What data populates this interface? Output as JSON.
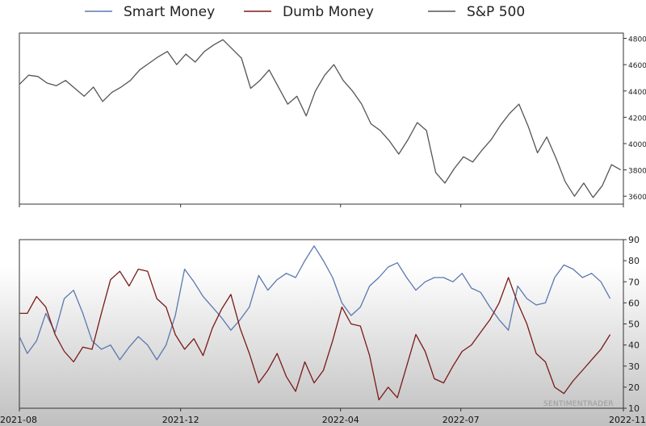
{
  "chart_data": [
    {
      "type": "line",
      "title": "",
      "series": [
        {
          "name": "S&P 500",
          "color": "#555555",
          "points": [
            [
              "2021-08-01",
              4450
            ],
            [
              "2021-08-08",
              4520
            ],
            [
              "2021-08-15",
              4510
            ],
            [
              "2021-08-22",
              4460
            ],
            [
              "2021-08-29",
              4440
            ],
            [
              "2021-09-05",
              4480
            ],
            [
              "2021-09-12",
              4420
            ],
            [
              "2021-09-19",
              4360
            ],
            [
              "2021-09-26",
              4430
            ],
            [
              "2021-10-03",
              4320
            ],
            [
              "2021-10-10",
              4390
            ],
            [
              "2021-10-17",
              4430
            ],
            [
              "2021-10-24",
              4480
            ],
            [
              "2021-10-31",
              4560
            ],
            [
              "2021-11-07",
              4610
            ],
            [
              "2021-11-14",
              4660
            ],
            [
              "2021-11-21",
              4700
            ],
            [
              "2021-11-28",
              4600
            ],
            [
              "2021-12-05",
              4680
            ],
            [
              "2021-12-12",
              4620
            ],
            [
              "2021-12-19",
              4700
            ],
            [
              "2021-12-26",
              4750
            ],
            [
              "2022-01-02",
              4790
            ],
            [
              "2022-01-09",
              4720
            ],
            [
              "2022-01-16",
              4650
            ],
            [
              "2022-01-23",
              4420
            ],
            [
              "2022-01-30",
              4480
            ],
            [
              "2022-02-06",
              4560
            ],
            [
              "2022-02-13",
              4430
            ],
            [
              "2022-02-20",
              4300
            ],
            [
              "2022-02-27",
              4360
            ],
            [
              "2022-03-06",
              4210
            ],
            [
              "2022-03-13",
              4400
            ],
            [
              "2022-03-20",
              4520
            ],
            [
              "2022-03-27",
              4600
            ],
            [
              "2022-04-03",
              4480
            ],
            [
              "2022-04-10",
              4400
            ],
            [
              "2022-04-17",
              4300
            ],
            [
              "2022-04-24",
              4150
            ],
            [
              "2022-05-01",
              4100
            ],
            [
              "2022-05-08",
              4020
            ],
            [
              "2022-05-15",
              3920
            ],
            [
              "2022-05-22",
              4030
            ],
            [
              "2022-05-29",
              4160
            ],
            [
              "2022-06-05",
              4100
            ],
            [
              "2022-06-12",
              3780
            ],
            [
              "2022-06-19",
              3700
            ],
            [
              "2022-06-26",
              3810
            ],
            [
              "2022-07-03",
              3900
            ],
            [
              "2022-07-10",
              3860
            ],
            [
              "2022-07-17",
              3950
            ],
            [
              "2022-07-24",
              4030
            ],
            [
              "2022-07-31",
              4140
            ],
            [
              "2022-08-07",
              4230
            ],
            [
              "2022-08-14",
              4300
            ],
            [
              "2022-08-21",
              4130
            ],
            [
              "2022-08-28",
              3930
            ],
            [
              "2022-09-04",
              4050
            ],
            [
              "2022-09-11",
              3890
            ],
            [
              "2022-09-18",
              3710
            ],
            [
              "2022-09-25",
              3600
            ],
            [
              "2022-10-02",
              3700
            ],
            [
              "2022-10-09",
              3590
            ],
            [
              "2022-10-16",
              3680
            ],
            [
              "2022-10-23",
              3840
            ],
            [
              "2022-10-30",
              3800
            ]
          ]
        }
      ],
      "x_range": [
        "2021-08-01",
        "2022-11-01"
      ],
      "ylim": [
        3540,
        4840
      ],
      "yticks": [
        3600,
        3800,
        4000,
        4200,
        4400,
        4600,
        4800
      ],
      "grid": false
    },
    {
      "type": "line",
      "title": "",
      "series": [
        {
          "name": "Smart Money",
          "color": "#5b78b0",
          "points": [
            [
              "2021-08-01",
              44
            ],
            [
              "2021-08-07",
              36
            ],
            [
              "2021-08-14",
              42
            ],
            [
              "2021-08-21",
              55
            ],
            [
              "2021-08-28",
              46
            ],
            [
              "2021-09-04",
              62
            ],
            [
              "2021-09-11",
              66
            ],
            [
              "2021-09-18",
              55
            ],
            [
              "2021-09-25",
              42
            ],
            [
              "2021-10-02",
              38
            ],
            [
              "2021-10-09",
              40
            ],
            [
              "2021-10-16",
              33
            ],
            [
              "2021-10-23",
              39
            ],
            [
              "2021-10-30",
              44
            ],
            [
              "2021-11-06",
              40
            ],
            [
              "2021-11-13",
              33
            ],
            [
              "2021-11-20",
              40
            ],
            [
              "2021-11-27",
              54
            ],
            [
              "2021-12-04",
              76
            ],
            [
              "2021-12-11",
              70
            ],
            [
              "2021-12-18",
              63
            ],
            [
              "2021-12-25",
              58
            ],
            [
              "2022-01-01",
              53
            ],
            [
              "2022-01-08",
              47
            ],
            [
              "2022-01-15",
              52
            ],
            [
              "2022-01-22",
              58
            ],
            [
              "2022-01-29",
              73
            ],
            [
              "2022-02-05",
              66
            ],
            [
              "2022-02-12",
              71
            ],
            [
              "2022-02-19",
              74
            ],
            [
              "2022-02-26",
              72
            ],
            [
              "2022-03-05",
              80
            ],
            [
              "2022-03-12",
              87
            ],
            [
              "2022-03-19",
              80
            ],
            [
              "2022-03-26",
              72
            ],
            [
              "2022-04-02",
              60
            ],
            [
              "2022-04-09",
              54
            ],
            [
              "2022-04-16",
              58
            ],
            [
              "2022-04-23",
              68
            ],
            [
              "2022-04-30",
              72
            ],
            [
              "2022-05-07",
              77
            ],
            [
              "2022-05-14",
              79
            ],
            [
              "2022-05-21",
              72
            ],
            [
              "2022-05-28",
              66
            ],
            [
              "2022-06-04",
              70
            ],
            [
              "2022-06-11",
              72
            ],
            [
              "2022-06-18",
              72
            ],
            [
              "2022-06-25",
              70
            ],
            [
              "2022-07-02",
              74
            ],
            [
              "2022-07-09",
              67
            ],
            [
              "2022-07-16",
              65
            ],
            [
              "2022-07-23",
              58
            ],
            [
              "2022-07-30",
              52
            ],
            [
              "2022-08-06",
              47
            ],
            [
              "2022-08-13",
              68
            ],
            [
              "2022-08-20",
              62
            ],
            [
              "2022-08-27",
              59
            ],
            [
              "2022-09-03",
              60
            ],
            [
              "2022-09-10",
              72
            ],
            [
              "2022-09-17",
              78
            ],
            [
              "2022-09-24",
              76
            ],
            [
              "2022-10-01",
              72
            ],
            [
              "2022-10-08",
              74
            ],
            [
              "2022-10-15",
              70
            ],
            [
              "2022-10-22",
              62
            ]
          ]
        },
        {
          "name": "Dumb Money",
          "color": "#7a1a1a",
          "points": [
            [
              "2021-08-01",
              55
            ],
            [
              "2021-08-07",
              55
            ],
            [
              "2021-08-14",
              63
            ],
            [
              "2021-08-21",
              58
            ],
            [
              "2021-08-28",
              45
            ],
            [
              "2021-09-04",
              37
            ],
            [
              "2021-09-11",
              32
            ],
            [
              "2021-09-18",
              39
            ],
            [
              "2021-09-25",
              38
            ],
            [
              "2021-10-02",
              55
            ],
            [
              "2021-10-09",
              71
            ],
            [
              "2021-10-16",
              75
            ],
            [
              "2021-10-23",
              68
            ],
            [
              "2021-10-30",
              76
            ],
            [
              "2021-11-06",
              75
            ],
            [
              "2021-11-13",
              62
            ],
            [
              "2021-11-20",
              58
            ],
            [
              "2021-11-27",
              45
            ],
            [
              "2021-12-04",
              38
            ],
            [
              "2021-12-11",
              43
            ],
            [
              "2021-12-18",
              35
            ],
            [
              "2021-12-25",
              48
            ],
            [
              "2022-01-01",
              57
            ],
            [
              "2022-01-08",
              64
            ],
            [
              "2022-01-15",
              48
            ],
            [
              "2022-01-22",
              36
            ],
            [
              "2022-01-29",
              22
            ],
            [
              "2022-02-05",
              28
            ],
            [
              "2022-02-12",
              36
            ],
            [
              "2022-02-19",
              25
            ],
            [
              "2022-02-26",
              18
            ],
            [
              "2022-03-05",
              32
            ],
            [
              "2022-03-12",
              22
            ],
            [
              "2022-03-19",
              28
            ],
            [
              "2022-03-26",
              42
            ],
            [
              "2022-04-02",
              58
            ],
            [
              "2022-04-09",
              50
            ],
            [
              "2022-04-16",
              49
            ],
            [
              "2022-04-23",
              35
            ],
            [
              "2022-04-30",
              14
            ],
            [
              "2022-05-07",
              20
            ],
            [
              "2022-05-14",
              15
            ],
            [
              "2022-05-21",
              30
            ],
            [
              "2022-05-28",
              45
            ],
            [
              "2022-06-04",
              37
            ],
            [
              "2022-06-11",
              24
            ],
            [
              "2022-06-18",
              22
            ],
            [
              "2022-06-25",
              30
            ],
            [
              "2022-07-02",
              37
            ],
            [
              "2022-07-09",
              40
            ],
            [
              "2022-07-16",
              46
            ],
            [
              "2022-07-23",
              52
            ],
            [
              "2022-07-30",
              60
            ],
            [
              "2022-08-06",
              72
            ],
            [
              "2022-08-13",
              60
            ],
            [
              "2022-08-20",
              50
            ],
            [
              "2022-08-27",
              36
            ],
            [
              "2022-09-03",
              32
            ],
            [
              "2022-09-10",
              20
            ],
            [
              "2022-09-17",
              17
            ],
            [
              "2022-09-24",
              23
            ],
            [
              "2022-10-01",
              28
            ],
            [
              "2022-10-08",
              33
            ],
            [
              "2022-10-15",
              38
            ],
            [
              "2022-10-22",
              45
            ]
          ]
        }
      ],
      "x_range": [
        "2021-08-01",
        "2022-11-01"
      ],
      "ylim": [
        10,
        90
      ],
      "yticks": [
        10,
        20,
        30,
        40,
        50,
        60,
        70,
        80,
        90
      ],
      "grid": false
    }
  ],
  "legend": {
    "placement": "top",
    "items": [
      {
        "label": "Smart Money",
        "color": "#5b78b0"
      },
      {
        "label": "Dumb Money",
        "color": "#7a1a1a"
      },
      {
        "label": "S&P 500",
        "color": "#555555"
      }
    ]
  },
  "x_axis": {
    "ticks": [
      {
        "date": "2021-08-01",
        "label": "2021-08"
      },
      {
        "date": "2021-12-01",
        "label": "2021-12"
      },
      {
        "date": "2022-04-01",
        "label": "2022-04"
      },
      {
        "date": "2022-07-01",
        "label": "2022-07"
      },
      {
        "date": "2022-11-01",
        "label": "2022-11"
      }
    ]
  },
  "watermark": "SENTIMENTRADER"
}
